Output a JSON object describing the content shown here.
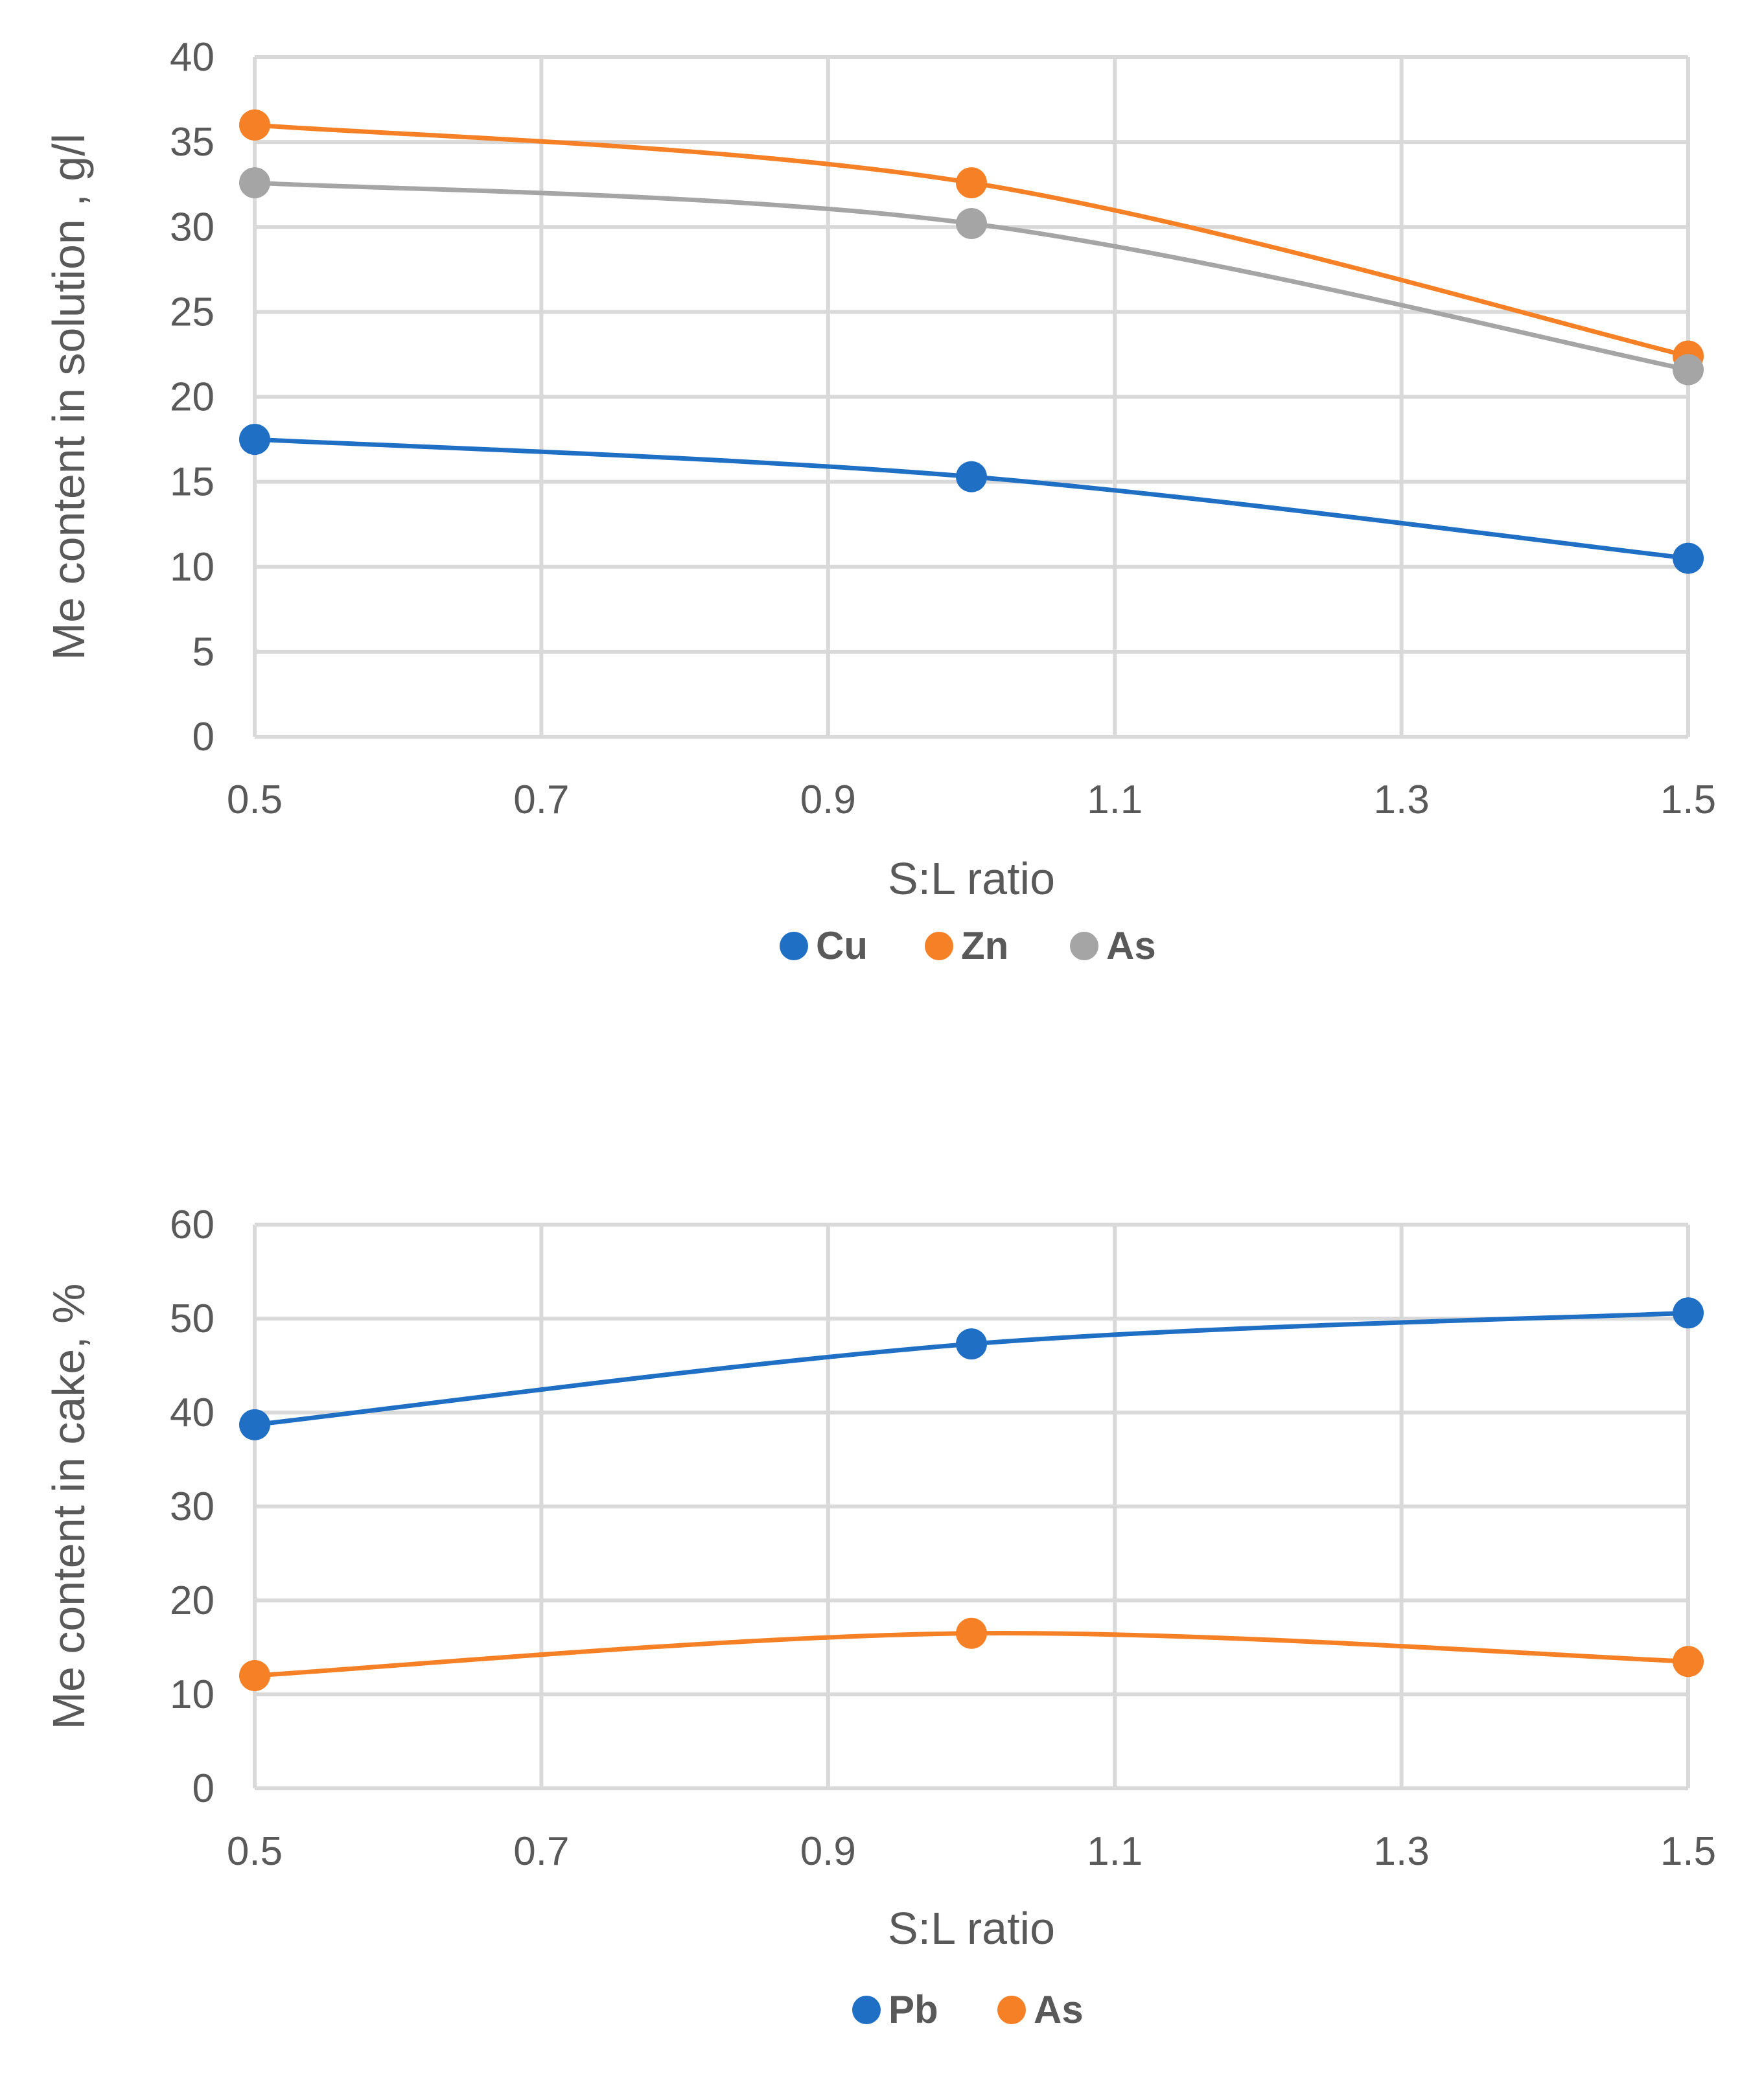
{
  "chart_data": [
    {
      "type": "line",
      "title": "",
      "xlabel": "S:L ratio",
      "ylabel": "Me content in solution , g/l",
      "xlim": [
        0.5,
        1.5
      ],
      "ylim": [
        0,
        40
      ],
      "xticks": [
        0.5,
        0.7,
        0.9,
        1.1,
        1.3,
        1.5
      ],
      "xtick_labels": [
        "0.5",
        "0.7",
        "0.9",
        "1.1",
        "1.3",
        "1.5"
      ],
      "yticks": [
        0,
        5,
        10,
        15,
        20,
        25,
        30,
        35,
        40
      ],
      "ytick_labels": [
        "0",
        "5",
        "10",
        "15",
        "20",
        "25",
        "30",
        "35",
        "40"
      ],
      "grid": true,
      "legend_position": "bottom",
      "x": [
        0.5,
        1.0,
        1.5
      ],
      "series": [
        {
          "name": "Cu",
          "color": "#1f6fc5",
          "values": [
            17.5,
            15.3,
            10.5
          ]
        },
        {
          "name": "Zn",
          "color": "#f58025",
          "values": [
            36.0,
            32.6,
            22.4
          ]
        },
        {
          "name": "As",
          "color": "#a5a5a5",
          "values": [
            32.6,
            30.2,
            21.6
          ]
        }
      ]
    },
    {
      "type": "line",
      "title": "",
      "xlabel": "S:L ratio",
      "ylabel": "Me content in cake, %",
      "xlim": [
        0.5,
        1.5
      ],
      "ylim": [
        0,
        60
      ],
      "xticks": [
        0.5,
        0.7,
        0.9,
        1.1,
        1.3,
        1.5
      ],
      "xtick_labels": [
        "0.5",
        "0.7",
        "0.9",
        "1.1",
        "1.3",
        "1.5"
      ],
      "yticks": [
        0,
        10,
        20,
        30,
        40,
        50,
        60
      ],
      "ytick_labels": [
        "0",
        "10",
        "20",
        "30",
        "40",
        "50",
        "60"
      ],
      "grid": true,
      "legend_position": "bottom",
      "x": [
        0.5,
        1.0,
        1.5
      ],
      "series": [
        {
          "name": "Pb",
          "color": "#1f6fc5",
          "values": [
            38.7,
            47.3,
            50.6
          ]
        },
        {
          "name": "As",
          "color": "#f58025",
          "values": [
            12.0,
            16.5,
            13.5
          ]
        }
      ]
    }
  ]
}
